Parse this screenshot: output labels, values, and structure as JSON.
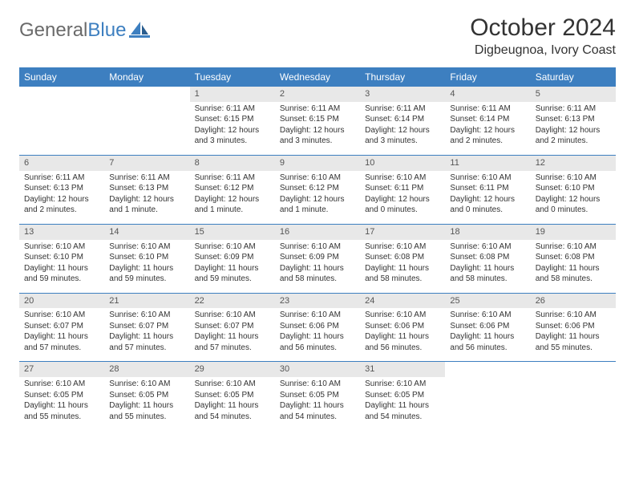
{
  "logo": {
    "text_general": "General",
    "text_blue": "Blue"
  },
  "title": "October 2024",
  "location": "Digbeugnoa, Ivory Coast",
  "colors": {
    "header_bg": "#3d7fc0",
    "header_text": "#ffffff",
    "daynum_bg": "#e8e8e8",
    "body_text": "#333333",
    "row_border": "#3d7fc0"
  },
  "day_headers": [
    "Sunday",
    "Monday",
    "Tuesday",
    "Wednesday",
    "Thursday",
    "Friday",
    "Saturday"
  ],
  "weeks": [
    [
      {
        "empty": true
      },
      {
        "empty": true
      },
      {
        "num": "1",
        "sunrise": "Sunrise: 6:11 AM",
        "sunset": "Sunset: 6:15 PM",
        "day1": "Daylight: 12 hours",
        "day2": "and 3 minutes."
      },
      {
        "num": "2",
        "sunrise": "Sunrise: 6:11 AM",
        "sunset": "Sunset: 6:15 PM",
        "day1": "Daylight: 12 hours",
        "day2": "and 3 minutes."
      },
      {
        "num": "3",
        "sunrise": "Sunrise: 6:11 AM",
        "sunset": "Sunset: 6:14 PM",
        "day1": "Daylight: 12 hours",
        "day2": "and 3 minutes."
      },
      {
        "num": "4",
        "sunrise": "Sunrise: 6:11 AM",
        "sunset": "Sunset: 6:14 PM",
        "day1": "Daylight: 12 hours",
        "day2": "and 2 minutes."
      },
      {
        "num": "5",
        "sunrise": "Sunrise: 6:11 AM",
        "sunset": "Sunset: 6:13 PM",
        "day1": "Daylight: 12 hours",
        "day2": "and 2 minutes."
      }
    ],
    [
      {
        "num": "6",
        "sunrise": "Sunrise: 6:11 AM",
        "sunset": "Sunset: 6:13 PM",
        "day1": "Daylight: 12 hours",
        "day2": "and 2 minutes."
      },
      {
        "num": "7",
        "sunrise": "Sunrise: 6:11 AM",
        "sunset": "Sunset: 6:13 PM",
        "day1": "Daylight: 12 hours",
        "day2": "and 1 minute."
      },
      {
        "num": "8",
        "sunrise": "Sunrise: 6:11 AM",
        "sunset": "Sunset: 6:12 PM",
        "day1": "Daylight: 12 hours",
        "day2": "and 1 minute."
      },
      {
        "num": "9",
        "sunrise": "Sunrise: 6:10 AM",
        "sunset": "Sunset: 6:12 PM",
        "day1": "Daylight: 12 hours",
        "day2": "and 1 minute."
      },
      {
        "num": "10",
        "sunrise": "Sunrise: 6:10 AM",
        "sunset": "Sunset: 6:11 PM",
        "day1": "Daylight: 12 hours",
        "day2": "and 0 minutes."
      },
      {
        "num": "11",
        "sunrise": "Sunrise: 6:10 AM",
        "sunset": "Sunset: 6:11 PM",
        "day1": "Daylight: 12 hours",
        "day2": "and 0 minutes."
      },
      {
        "num": "12",
        "sunrise": "Sunrise: 6:10 AM",
        "sunset": "Sunset: 6:10 PM",
        "day1": "Daylight: 12 hours",
        "day2": "and 0 minutes."
      }
    ],
    [
      {
        "num": "13",
        "sunrise": "Sunrise: 6:10 AM",
        "sunset": "Sunset: 6:10 PM",
        "day1": "Daylight: 11 hours",
        "day2": "and 59 minutes."
      },
      {
        "num": "14",
        "sunrise": "Sunrise: 6:10 AM",
        "sunset": "Sunset: 6:10 PM",
        "day1": "Daylight: 11 hours",
        "day2": "and 59 minutes."
      },
      {
        "num": "15",
        "sunrise": "Sunrise: 6:10 AM",
        "sunset": "Sunset: 6:09 PM",
        "day1": "Daylight: 11 hours",
        "day2": "and 59 minutes."
      },
      {
        "num": "16",
        "sunrise": "Sunrise: 6:10 AM",
        "sunset": "Sunset: 6:09 PM",
        "day1": "Daylight: 11 hours",
        "day2": "and 58 minutes."
      },
      {
        "num": "17",
        "sunrise": "Sunrise: 6:10 AM",
        "sunset": "Sunset: 6:08 PM",
        "day1": "Daylight: 11 hours",
        "day2": "and 58 minutes."
      },
      {
        "num": "18",
        "sunrise": "Sunrise: 6:10 AM",
        "sunset": "Sunset: 6:08 PM",
        "day1": "Daylight: 11 hours",
        "day2": "and 58 minutes."
      },
      {
        "num": "19",
        "sunrise": "Sunrise: 6:10 AM",
        "sunset": "Sunset: 6:08 PM",
        "day1": "Daylight: 11 hours",
        "day2": "and 58 minutes."
      }
    ],
    [
      {
        "num": "20",
        "sunrise": "Sunrise: 6:10 AM",
        "sunset": "Sunset: 6:07 PM",
        "day1": "Daylight: 11 hours",
        "day2": "and 57 minutes."
      },
      {
        "num": "21",
        "sunrise": "Sunrise: 6:10 AM",
        "sunset": "Sunset: 6:07 PM",
        "day1": "Daylight: 11 hours",
        "day2": "and 57 minutes."
      },
      {
        "num": "22",
        "sunrise": "Sunrise: 6:10 AM",
        "sunset": "Sunset: 6:07 PM",
        "day1": "Daylight: 11 hours",
        "day2": "and 57 minutes."
      },
      {
        "num": "23",
        "sunrise": "Sunrise: 6:10 AM",
        "sunset": "Sunset: 6:06 PM",
        "day1": "Daylight: 11 hours",
        "day2": "and 56 minutes."
      },
      {
        "num": "24",
        "sunrise": "Sunrise: 6:10 AM",
        "sunset": "Sunset: 6:06 PM",
        "day1": "Daylight: 11 hours",
        "day2": "and 56 minutes."
      },
      {
        "num": "25",
        "sunrise": "Sunrise: 6:10 AM",
        "sunset": "Sunset: 6:06 PM",
        "day1": "Daylight: 11 hours",
        "day2": "and 56 minutes."
      },
      {
        "num": "26",
        "sunrise": "Sunrise: 6:10 AM",
        "sunset": "Sunset: 6:06 PM",
        "day1": "Daylight: 11 hours",
        "day2": "and 55 minutes."
      }
    ],
    [
      {
        "num": "27",
        "sunrise": "Sunrise: 6:10 AM",
        "sunset": "Sunset: 6:05 PM",
        "day1": "Daylight: 11 hours",
        "day2": "and 55 minutes."
      },
      {
        "num": "28",
        "sunrise": "Sunrise: 6:10 AM",
        "sunset": "Sunset: 6:05 PM",
        "day1": "Daylight: 11 hours",
        "day2": "and 55 minutes."
      },
      {
        "num": "29",
        "sunrise": "Sunrise: 6:10 AM",
        "sunset": "Sunset: 6:05 PM",
        "day1": "Daylight: 11 hours",
        "day2": "and 54 minutes."
      },
      {
        "num": "30",
        "sunrise": "Sunrise: 6:10 AM",
        "sunset": "Sunset: 6:05 PM",
        "day1": "Daylight: 11 hours",
        "day2": "and 54 minutes."
      },
      {
        "num": "31",
        "sunrise": "Sunrise: 6:10 AM",
        "sunset": "Sunset: 6:05 PM",
        "day1": "Daylight: 11 hours",
        "day2": "and 54 minutes."
      },
      {
        "empty": true
      },
      {
        "empty": true
      }
    ]
  ]
}
